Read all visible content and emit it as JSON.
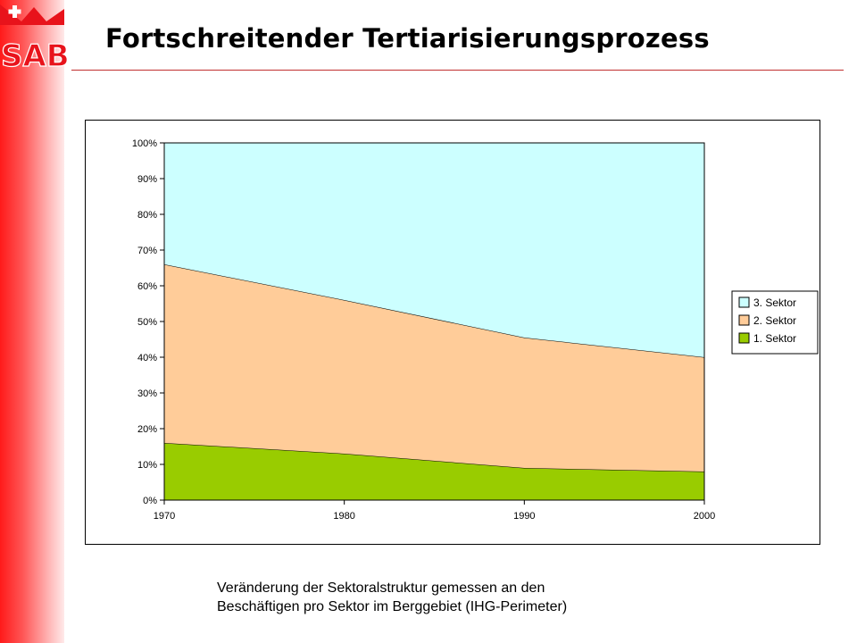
{
  "logo": {
    "text": "SAB",
    "brand_color": "#e8131b"
  },
  "header": {
    "title": "Fortschreitender Tertiarisierungsprozess"
  },
  "caption": {
    "line1": "Veränderung der Sektoralstruktur gemessen an den",
    "line2": "Beschäftigen pro Sektor im Berggebiet (IHG-Perimeter)"
  },
  "chart_data": {
    "type": "area",
    "stacking": "percent",
    "x": [
      1970,
      1980,
      1990,
      2000
    ],
    "x_tick_labels": [
      "1970",
      "1980",
      "1990",
      "2000"
    ],
    "y_tick_labels": [
      "0%",
      "10%",
      "20%",
      "30%",
      "40%",
      "50%",
      "60%",
      "70%",
      "80%",
      "90%",
      "100%"
    ],
    "ylim": [
      0,
      100
    ],
    "title": "",
    "xlabel": "",
    "ylabel": "",
    "legend_position": "right",
    "series": [
      {
        "name": "1. Sektor",
        "values": [
          16,
          13,
          9,
          8
        ],
        "color": "#99cc00"
      },
      {
        "name": "2. Sektor",
        "values": [
          50,
          43,
          36.5,
          32
        ],
        "color": "#ffcc99"
      },
      {
        "name": "3. Sektor",
        "values": [
          34,
          44,
          54.5,
          60
        ],
        "color": "#ccffff"
      }
    ],
    "legend_order": [
      "3. Sektor",
      "2. Sektor",
      "1. Sektor"
    ]
  }
}
